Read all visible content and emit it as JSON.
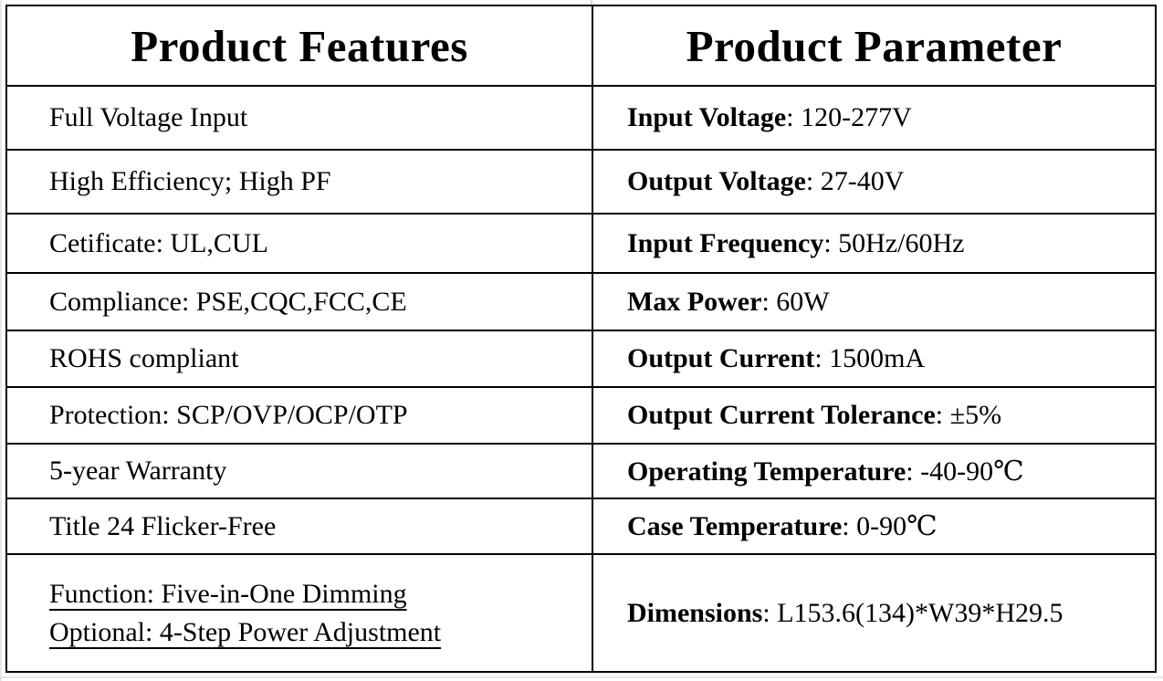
{
  "table": {
    "header_left": "Product Features",
    "header_right": "Product Parameter",
    "colon": ":",
    "features": [
      "Full Voltage Input",
      "High Efficiency; High PF",
      "Cetificate: UL,CUL",
      "Compliance: PSE,CQC,FCC,CE",
      "ROHS compliant",
      "Protection: SCP/OVP/OCP/OTP",
      "5-year Warranty",
      "Title 24 Flicker-Free"
    ],
    "function_lines": [
      "Function: Five-in-One Dimming",
      "Optional: 4-Step Power Adjustment"
    ],
    "parameters": [
      {
        "label": "Input Voltage",
        "value": "120-277V"
      },
      {
        "label": "Output Voltage",
        "value": "27-40V"
      },
      {
        "label": "Input Frequency",
        "value": "50Hz/60Hz"
      },
      {
        "label": "Max Power",
        "value": "60W"
      },
      {
        "label": "Output Current",
        "value": "1500mA"
      },
      {
        "label": "Output Current Tolerance",
        "value": "±5%"
      },
      {
        "label": "Operating Temperature",
        "value": "-40-90℃"
      },
      {
        "label": "Case Temperature",
        "value": "0-90℃"
      },
      {
        "label": "Dimensions",
        "value": "L153.6(134)*W39*H29.5"
      }
    ]
  },
  "colors": {
    "text": "#000000",
    "border": "#000000",
    "background": "#ffffff",
    "faint_edge_line": "#e6e6e6"
  }
}
